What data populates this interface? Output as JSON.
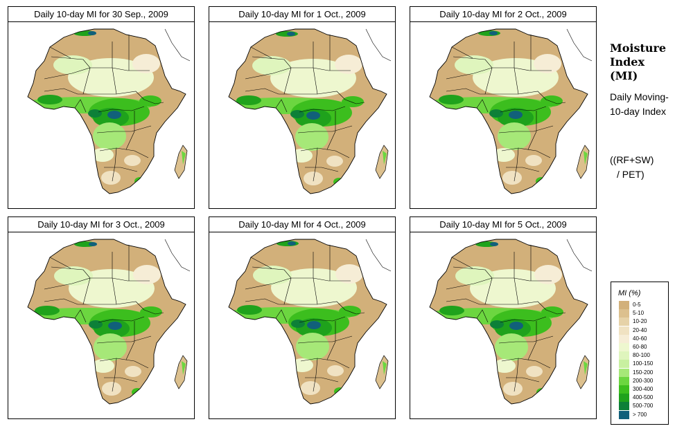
{
  "panels": [
    {
      "title": "Daily 10-day MI for  30 Sep., 2009"
    },
    {
      "title": "Daily 10-day MI for  1 Oct., 2009"
    },
    {
      "title": "Daily 10-day MI for  2 Oct., 2009"
    },
    {
      "title": "Daily 10-day MI for  3 Oct., 2009"
    },
    {
      "title": "Daily 10-day MI for  4 Oct., 2009"
    },
    {
      "title": "Daily 10-day MI for  5 Oct., 2009"
    }
  ],
  "side": {
    "title": "Moisture Index (MI)",
    "description": "Daily Moving-10-day Index",
    "formula_line1": "((RF+SW)",
    "formula_line2": "/ PET)"
  },
  "legend": {
    "title": "MI (%)",
    "items": [
      {
        "label": "0-5",
        "color": "#d2b07a"
      },
      {
        "label": "5-10",
        "color": "#dcc08e"
      },
      {
        "label": "10-20",
        "color": "#e6d2a8"
      },
      {
        "label": "20-40",
        "color": "#f0e2c2"
      },
      {
        "label": "40-60",
        "color": "#f6edd6"
      },
      {
        "label": "60-80",
        "color": "#eef7cf"
      },
      {
        "label": "80-100",
        "color": "#dff5bd"
      },
      {
        "label": "100-150",
        "color": "#c8f0a0"
      },
      {
        "label": "150-200",
        "color": "#a6e878"
      },
      {
        "label": "200-300",
        "color": "#6cd640"
      },
      {
        "label": "300-400",
        "color": "#3cbe1e"
      },
      {
        "label": "400-500",
        "color": "#1fa21c"
      },
      {
        "label": "500-700",
        "color": "#0d8038"
      },
      {
        "label": "> 700",
        "color": "#11607a"
      }
    ]
  }
}
